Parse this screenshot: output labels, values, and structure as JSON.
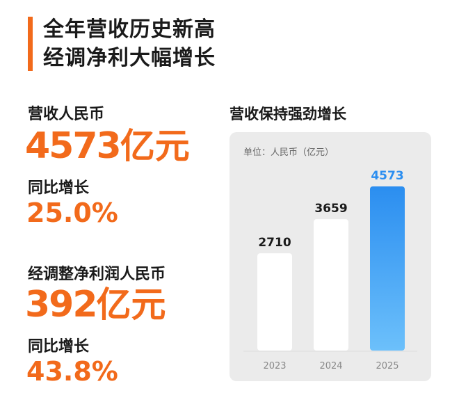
{
  "header": {
    "title_line1": "全年营收历史新高",
    "title_line2": "经调净利大幅增长"
  },
  "metrics": {
    "revenue_label": "营收人民币",
    "revenue_value": "4573",
    "revenue_unit": "亿元",
    "revenue_growth_label": "同比增长",
    "revenue_growth_value": "25.0%",
    "profit_label": "经调整净利润人民币",
    "profit_value": "392",
    "profit_unit": "亿元",
    "profit_growth_label": "同比增长",
    "profit_growth_value": "43.8%"
  },
  "colors": {
    "accent": "#f26a1b",
    "bar_white": "#ffffff",
    "bar_blue_top": "#2b8ef0",
    "bar_blue_bottom": "#6cc0fb",
    "panel_bg": "#ebebeb"
  },
  "chart_data": {
    "type": "bar",
    "title": "营收保持强劲增长",
    "unit_label": "单位：人民币（亿元）",
    "categories": [
      "2023",
      "2024",
      "2025"
    ],
    "values": [
      2710,
      3659,
      4573
    ],
    "highlight_index": 2,
    "ylim": [
      0,
      4573
    ],
    "grid": false
  }
}
